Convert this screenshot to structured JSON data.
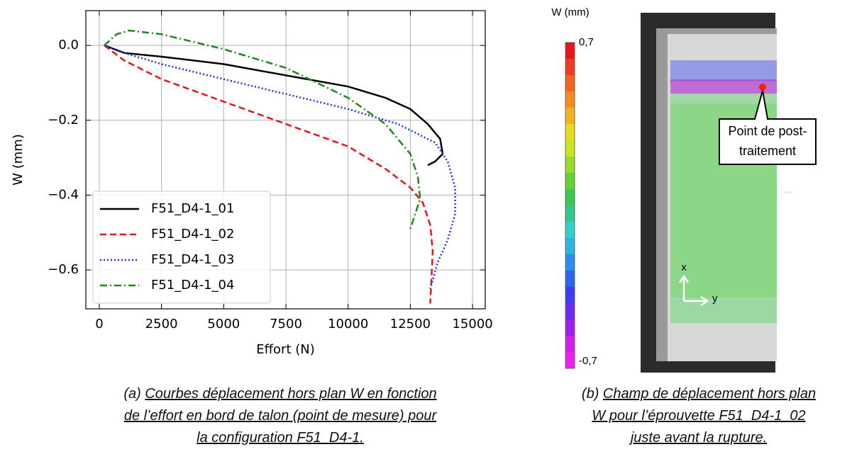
{
  "chart_data": {
    "type": "line",
    "xlabel": "Effort (N)",
    "ylabel": "W (mm)",
    "xlim": [
      -540,
      15510
    ],
    "ylim": [
      -0.704,
      0.093
    ],
    "xticks": [
      0,
      2500,
      5000,
      7500,
      10000,
      12500,
      15000
    ],
    "yticks": [
      {
        "value": 0,
        "label": "0.0"
      },
      {
        "value": -0.2,
        "label": "−0.2"
      },
      {
        "value": -0.4,
        "label": "−0.4"
      },
      {
        "value": -0.6,
        "label": "−0.6"
      }
    ],
    "grid": true,
    "legend": "lower left",
    "series": [
      {
        "name": "F51_D4-1_01",
        "color": "#000000",
        "dash": "solid",
        "x": [
          200,
          1000,
          2500,
          5000,
          7500,
          10000,
          11500,
          12500,
          13200,
          13700,
          13800,
          13500,
          13200
        ],
        "values": [
          0,
          -0.02,
          -0.03,
          -0.05,
          -0.08,
          -0.11,
          -0.14,
          -0.17,
          -0.21,
          -0.25,
          -0.29,
          -0.31,
          -0.32
        ]
      },
      {
        "name": "F51_D4-1_02",
        "color": "#e8141c",
        "dash": "dashed",
        "x": [
          200,
          1000,
          2500,
          5000,
          7500,
          10000,
          11500,
          12500,
          13000,
          13300,
          13400,
          13300
        ],
        "values": [
          0,
          -0.04,
          -0.09,
          -0.15,
          -0.21,
          -0.27,
          -0.33,
          -0.38,
          -0.42,
          -0.48,
          -0.55,
          -0.69
        ]
      },
      {
        "name": "F51_D4-1_03",
        "color": "#1f2fe8",
        "dash": "dotted",
        "x": [
          200,
          1000,
          2500,
          5000,
          7500,
          10000,
          12000,
          13500,
          14000,
          14300,
          14300,
          14000,
          13600,
          13300
        ],
        "values": [
          0,
          -0.02,
          -0.05,
          -0.09,
          -0.13,
          -0.17,
          -0.21,
          -0.26,
          -0.31,
          -0.38,
          -0.45,
          -0.52,
          -0.58,
          -0.65
        ]
      },
      {
        "name": "F51_D4-1_04",
        "color": "#1a8a1a",
        "dash": "dashdot",
        "x": [
          200,
          700,
          1200,
          2500,
          5000,
          7500,
          10000,
          11500,
          12500,
          12800,
          12900,
          12700,
          12500
        ],
        "values": [
          0,
          0.03,
          0.04,
          0.03,
          -0.01,
          -0.06,
          -0.14,
          -0.21,
          -0.29,
          -0.35,
          -0.41,
          -0.45,
          -0.49
        ]
      }
    ]
  },
  "colorbar": {
    "title": "W (mm)",
    "max_label": "0,7",
    "min_label": "-0,7",
    "colors": [
      "#e8141c",
      "#f03c1e",
      "#f5641f",
      "#f68c1f",
      "#f0b41e",
      "#e6dc1e",
      "#c8e61e",
      "#96dc28",
      "#64d232",
      "#3cc850",
      "#32c88c",
      "#32d2c8",
      "#2db4e6",
      "#2d8cf0",
      "#2d64f0",
      "#3c3cf0",
      "#6e28f0",
      "#a01ef0",
      "#d21ef0",
      "#f01ef0"
    ]
  },
  "image": {
    "annotation": [
      "Point de post-",
      "traitement"
    ],
    "axis_x": "x",
    "axis_y": "y"
  },
  "captions": {
    "a": {
      "prefix": "(a) ",
      "lines": [
        "Courbes déplacement hors plan W en fonction",
        "de l’effort en bord de talon (point de mesure) pour",
        "la configuration F51_D4-1."
      ]
    },
    "b": {
      "prefix": "(b) ",
      "lines": [
        "Champ de déplacement hors plan",
        "W pour l’éprouvette F51_D4-1_02",
        "juste avant la rupture."
      ]
    }
  }
}
